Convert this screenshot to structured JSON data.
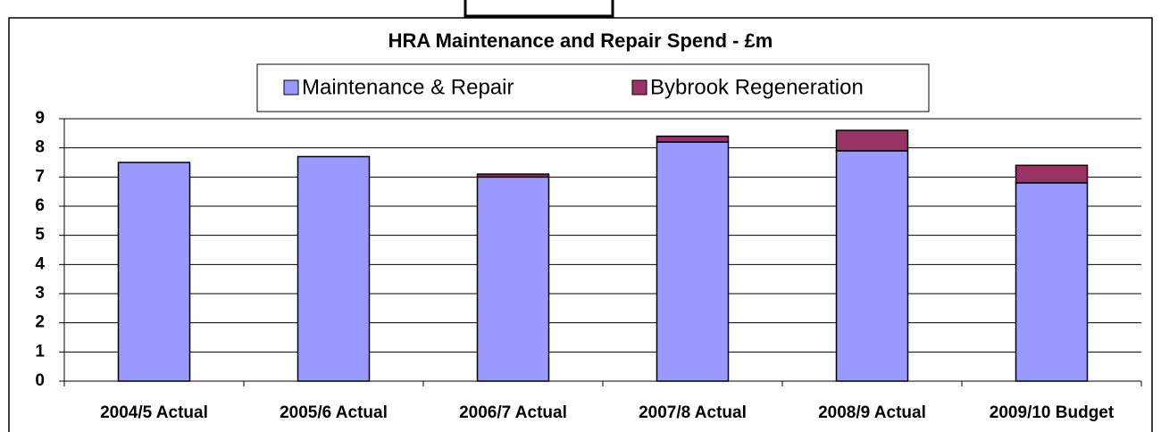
{
  "chart_data": {
    "type": "bar",
    "stacked": true,
    "title": "HRA Maintenance and Repair Spend - £m",
    "categories": [
      "2004/5 Actual",
      "2005/6 Actual",
      "2006/7 Actual",
      "2007/8 Actual",
      "2008/9 Actual",
      "2009/10 Budget"
    ],
    "series": [
      {
        "name": "Maintenance & Repair",
        "color": "#9999ff",
        "values": [
          7.5,
          7.7,
          7.0,
          8.2,
          7.9,
          6.8
        ]
      },
      {
        "name": "Bybrook Regeneration",
        "color": "#993366",
        "values": [
          0,
          0,
          0.1,
          0.2,
          0.7,
          0.6
        ]
      }
    ],
    "ylim": [
      0,
      9
    ],
    "yticks": [
      0,
      1,
      2,
      3,
      4,
      5,
      6,
      7,
      8,
      9
    ],
    "grid": true
  }
}
